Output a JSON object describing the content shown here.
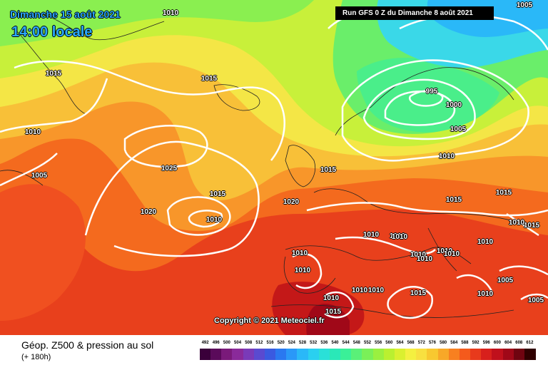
{
  "map": {
    "title_date": "Dimanche 15 août 2021",
    "title_time": "14:00 locale",
    "run_info": "Run GFS 0 Z du Dimanche 8 août 2021",
    "copyright": "Copyright © 2021 Meteociel.fr",
    "pressure_labels": [
      "1010",
      "1005",
      "1015",
      "1010",
      "1005",
      "1015",
      "1025",
      "1020",
      "1015",
      "1010",
      "1015",
      "1020",
      "995",
      "1000",
      "1005",
      "1010",
      "1015",
      "1015",
      "1015",
      "1010",
      "1010",
      "1010",
      "1010",
      "1010",
      "1010",
      "1010",
      "1010",
      "1010",
      "1015",
      "1010",
      "1010",
      "1010",
      "1005",
      "1005",
      "1010",
      "1015",
      "1010",
      "1010"
    ]
  },
  "footer": {
    "title": "Géop. Z500 & pression au sol",
    "subtitle": "(+ 180h)"
  },
  "legend": {
    "levels": [
      "492",
      "496",
      "500",
      "504",
      "508",
      "512",
      "516",
      "520",
      "524",
      "528",
      "532",
      "536",
      "540",
      "544",
      "548",
      "552",
      "556",
      "560",
      "564",
      "568",
      "572",
      "576",
      "580",
      "584",
      "588",
      "592",
      "596",
      "600",
      "604",
      "608",
      "612"
    ],
    "colors": [
      "#3a003a",
      "#5a0a5a",
      "#7a1a7a",
      "#8a2a9a",
      "#7a3ab8",
      "#5a4ad0",
      "#3a5ae0",
      "#2a78f0",
      "#2a98f8",
      "#2ab8f8",
      "#2ad0f0",
      "#2ae0d8",
      "#2ae8b8",
      "#3af098",
      "#5af078",
      "#7af058",
      "#9af040",
      "#baf030",
      "#daf030",
      "#f4f040",
      "#f8e040",
      "#f8c830",
      "#f8a828",
      "#f88020",
      "#f45a1c",
      "#e83a1c",
      "#d8201c",
      "#c0101c",
      "#a00818",
      "#700410",
      "#300000"
    ]
  }
}
